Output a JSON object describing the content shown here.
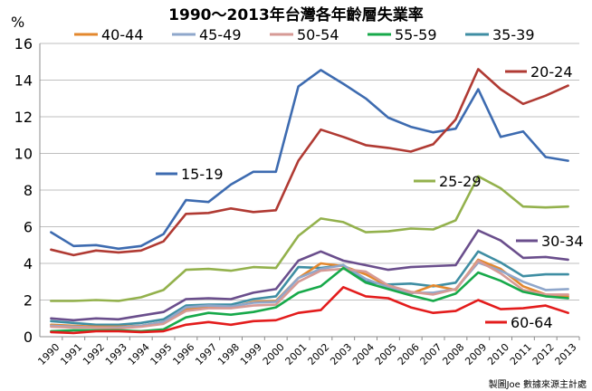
{
  "chart_data": {
    "type": "line",
    "title": "1990～2013年台灣各年齡層失業率",
    "ylabel": "%",
    "xlabel": "",
    "ylim": [
      0,
      16
    ],
    "yticks": [
      0,
      2,
      4,
      6,
      8,
      10,
      12,
      14,
      16
    ],
    "grid": true,
    "legend_position": "top",
    "credit": "製圖Joe 數據來源主計處",
    "x": [
      "1990",
      "1991",
      "1992",
      "1993",
      "1994",
      "1995",
      "1996",
      "1997",
      "1998",
      "1999",
      "2000",
      "2001",
      "2002",
      "2003",
      "2004",
      "2005",
      "2006",
      "2007",
      "2008",
      "2009",
      "2010",
      "2011",
      "2012",
      "2013"
    ],
    "series": [
      {
        "name": "15-19",
        "color": "#3d6bb0",
        "label_placement": "inline",
        "values": [
          5.7,
          4.95,
          5.0,
          4.8,
          4.95,
          5.6,
          7.45,
          7.35,
          8.3,
          9.0,
          9.0,
          13.65,
          14.55,
          13.8,
          13.0,
          11.95,
          11.45,
          11.15,
          11.35,
          13.5,
          10.9,
          11.2,
          9.8,
          9.6
        ]
      },
      {
        "name": "20-24",
        "color": "#b03a33",
        "label_placement": "inline",
        "values": [
          4.75,
          4.45,
          4.7,
          4.6,
          4.7,
          5.2,
          6.7,
          6.75,
          7.0,
          6.8,
          6.9,
          9.6,
          11.3,
          10.9,
          10.45,
          10.3,
          10.1,
          10.5,
          11.85,
          14.6,
          13.5,
          12.7,
          13.15,
          13.7
        ]
      },
      {
        "name": "25-29",
        "color": "#93b14c",
        "label_placement": "inline",
        "values": [
          1.95,
          1.95,
          2.0,
          1.95,
          2.15,
          2.55,
          3.65,
          3.7,
          3.6,
          3.8,
          3.75,
          5.5,
          6.45,
          6.25,
          5.7,
          5.75,
          5.9,
          5.85,
          6.35,
          8.75,
          8.1,
          7.1,
          7.05,
          7.1
        ]
      },
      {
        "name": "30-34",
        "color": "#6a4e8c",
        "label_placement": "inline",
        "values": [
          1.0,
          0.9,
          1.0,
          0.95,
          1.15,
          1.35,
          2.05,
          2.1,
          2.05,
          2.4,
          2.6,
          4.15,
          4.65,
          4.15,
          3.9,
          3.65,
          3.8,
          3.85,
          3.9,
          5.8,
          5.25,
          4.3,
          4.35,
          4.2
        ]
      },
      {
        "name": "35-39",
        "color": "#3f8ea3",
        "label_placement": "legend",
        "values": [
          0.85,
          0.75,
          0.65,
          0.65,
          0.75,
          0.95,
          1.7,
          1.75,
          1.75,
          2.05,
          2.2,
          3.8,
          3.75,
          3.9,
          3.0,
          2.85,
          2.9,
          2.75,
          2.95,
          4.65,
          4.05,
          3.3,
          3.4,
          3.4
        ]
      },
      {
        "name": "40-44",
        "color": "#e3882e",
        "label_placement": "legend",
        "values": [
          0.65,
          0.6,
          0.55,
          0.55,
          0.6,
          0.8,
          1.5,
          1.65,
          1.6,
          1.9,
          1.95,
          3.2,
          4.0,
          3.85,
          3.4,
          2.75,
          2.35,
          2.8,
          2.55,
          4.2,
          3.7,
          2.75,
          2.3,
          2.2
        ]
      },
      {
        "name": "45-49",
        "color": "#8fa7cb",
        "label_placement": "legend",
        "values": [
          0.6,
          0.55,
          0.5,
          0.5,
          0.6,
          0.8,
          1.6,
          1.7,
          1.65,
          1.85,
          1.9,
          3.2,
          3.7,
          3.9,
          3.15,
          2.7,
          2.4,
          2.4,
          2.6,
          4.05,
          3.6,
          3.0,
          2.55,
          2.6
        ]
      },
      {
        "name": "50-54",
        "color": "#d69a95",
        "label_placement": "legend",
        "values": [
          0.55,
          0.5,
          0.5,
          0.45,
          0.55,
          0.7,
          1.4,
          1.55,
          1.55,
          1.7,
          1.75,
          3.0,
          3.6,
          3.7,
          3.55,
          2.8,
          2.45,
          2.3,
          2.6,
          4.15,
          3.45,
          2.55,
          2.3,
          2.3
        ]
      },
      {
        "name": "55-59",
        "color": "#17a94a",
        "label_placement": "legend",
        "values": [
          0.3,
          0.35,
          0.35,
          0.35,
          0.3,
          0.4,
          1.05,
          1.3,
          1.2,
          1.35,
          1.6,
          2.4,
          2.75,
          3.75,
          2.95,
          2.6,
          2.25,
          1.95,
          2.35,
          3.5,
          3.05,
          2.45,
          2.2,
          2.1
        ]
      },
      {
        "name": "60-64",
        "color": "#e31c1c",
        "label_placement": "inline",
        "values": [
          0.25,
          0.2,
          0.3,
          0.3,
          0.25,
          0.3,
          0.65,
          0.8,
          0.65,
          0.85,
          0.9,
          1.3,
          1.45,
          2.7,
          2.2,
          2.1,
          1.6,
          1.3,
          1.4,
          2.0,
          1.5,
          1.55,
          1.7,
          1.3
        ]
      }
    ],
    "legend_order": [
      "40-44",
      "45-49",
      "50-54",
      "55-59",
      "35-39"
    ]
  }
}
